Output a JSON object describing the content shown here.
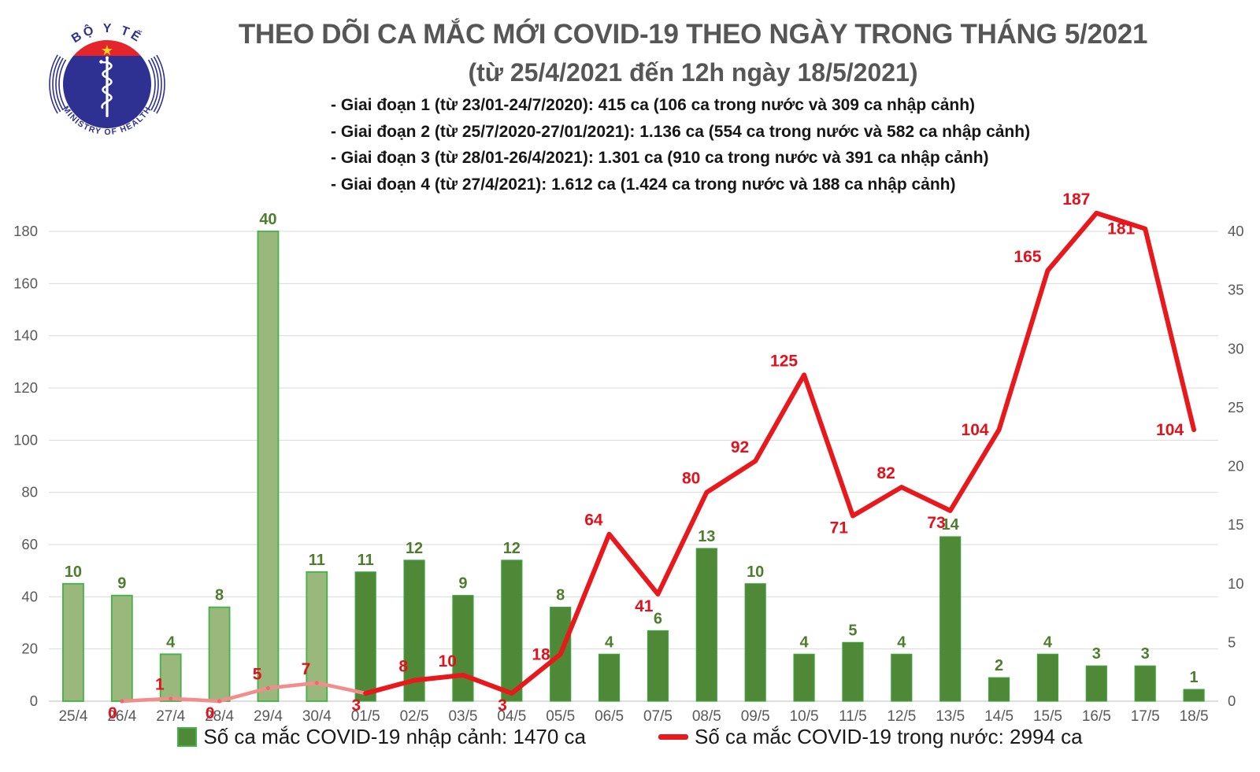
{
  "logo": {
    "top_text": "BỘ Y TẾ",
    "bottom_text": "MINISTRY OF HEALTH",
    "colors": {
      "red": "#e4262c",
      "blue": "#2e3192",
      "star": "#ffd21e"
    }
  },
  "header": {
    "title_line1": "THEO DÕI CA MẮC MỚI COVID-19 THEO NGÀY TRONG THÁNG 5/2021",
    "title_line2": "(từ 25/4/2021 đến 12h ngày 18/5/2021)",
    "bullets": [
      "- Giai đoạn 1 (từ 23/01-24/7/2020): 415 ca (106 ca trong nước và 309 ca nhập cảnh)",
      "- Giai đoạn 2 (từ 25/7/2020-27/01/2021): 1.136 ca (554 ca trong nước và 582 ca nhập cảnh)",
      "- Giai đoạn 3 (từ 28/01-26/4/2021): 1.301 ca (910 ca trong nước và 391 ca nhập cảnh)",
      "- Giai đoạn 4 (từ 27/4/2021): 1.612 ca (1.424 ca trong nước và 188 ca nhập cảnh)"
    ]
  },
  "legend": {
    "imported_label": "Số ca mắc COVID-19 nhập cảnh: 1470 ca",
    "domestic_label": "Số ca mắc COVID-19 trong nước: 2994 ca"
  },
  "chart_data": {
    "type": "bar",
    "subtype": "dual-axis bar+line combo",
    "categories": [
      "25/4",
      "26/4",
      "27/4",
      "28/4",
      "29/4",
      "30/4",
      "01/5",
      "02/5",
      "03/5",
      "04/5",
      "05/5",
      "06/5",
      "07/5",
      "08/5",
      "09/5",
      "10/5",
      "11/5",
      "12/5",
      "13/5",
      "14/5",
      "15/5",
      "16/5",
      "17/5",
      "18/5"
    ],
    "series": [
      {
        "name": "Số ca mắc COVID-19 nhập cảnh (imported cases)",
        "type": "bar",
        "axis": "right",
        "values": [
          10,
          9,
          4,
          8,
          40,
          11,
          11,
          12,
          9,
          12,
          8,
          4,
          6,
          13,
          10,
          4,
          5,
          4,
          14,
          2,
          4,
          3,
          3,
          1
        ],
        "muted_before_index": 6
      },
      {
        "name": "Số ca mắc COVID-19 trong nước (domestic cases)",
        "type": "line",
        "axis": "left",
        "values": [
          null,
          0,
          1,
          0,
          5,
          7,
          3,
          8,
          10,
          3,
          18,
          64,
          41,
          80,
          92,
          125,
          71,
          82,
          73,
          104,
          165,
          187,
          181,
          104
        ],
        "muted_before_index": 6,
        "label_pos": [
          null,
          "below-left",
          "above-left",
          "below-left",
          "above-left",
          "above-left",
          "below-left",
          "above-left",
          "above-left",
          "below-left",
          "left",
          "above-left",
          "below-left",
          "above-left",
          "above-left",
          "above-left",
          "below-left",
          "above-left",
          "below-left",
          "left",
          "above-left",
          "above-left",
          "left",
          "left"
        ]
      }
    ],
    "left_axis": {
      "min": 0,
      "max": 180,
      "step": 20,
      "ticks": [
        0,
        20,
        40,
        60,
        80,
        100,
        120,
        140,
        160,
        180
      ]
    },
    "right_axis": {
      "min": 0,
      "max": 40,
      "step": 5,
      "ticks": [
        0,
        5,
        10,
        15,
        20,
        25,
        30,
        35,
        40
      ]
    },
    "grid": "horizontal gridlines from left axis, light gray",
    "legend_position": "bottom",
    "colors": {
      "bar_fill": "#4f8937",
      "bar_border": "#3fa33f",
      "bar_muted_fill": "#9ab87c",
      "bar_muted_border": "#42b249",
      "line": "#e8191c",
      "line_muted": "#f38d8d",
      "line_muted_dot": "#ec6a6e",
      "bar_label": "#4e7d2e",
      "line_label": "#e3111b",
      "axis_text": "#595959",
      "gridline": "#d9d9d9",
      "axis_line": "#c9c9c9"
    }
  }
}
